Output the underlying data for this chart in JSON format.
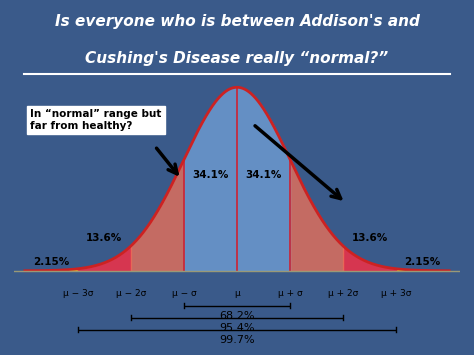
{
  "title_line1": "Is everyone who is between Addison's and",
  "title_line2": "Cushing's Disease really “normal?”",
  "title_bg": "#3a5a8a",
  "chart_bg": "#f0e8d0",
  "annotation_text": "In “normal” range but\nfar from healthy?",
  "percentages": [
    "2.15%",
    "13.6%",
    "34.1%",
    "34.1%",
    "13.6%",
    "2.15%"
  ],
  "sigma_labels": [
    "μ − 3σ",
    "μ − 2σ",
    "μ − σ",
    "μ",
    "μ + σ",
    "μ + 2σ",
    "μ + 3σ"
  ],
  "range_labels": [
    "68.2%",
    "95.4%",
    "99.7%"
  ],
  "red_color": "#e8334a",
  "blue_color": "#5b9bd5",
  "yellow_color": "#f5c518",
  "arrow_color": "#111111"
}
